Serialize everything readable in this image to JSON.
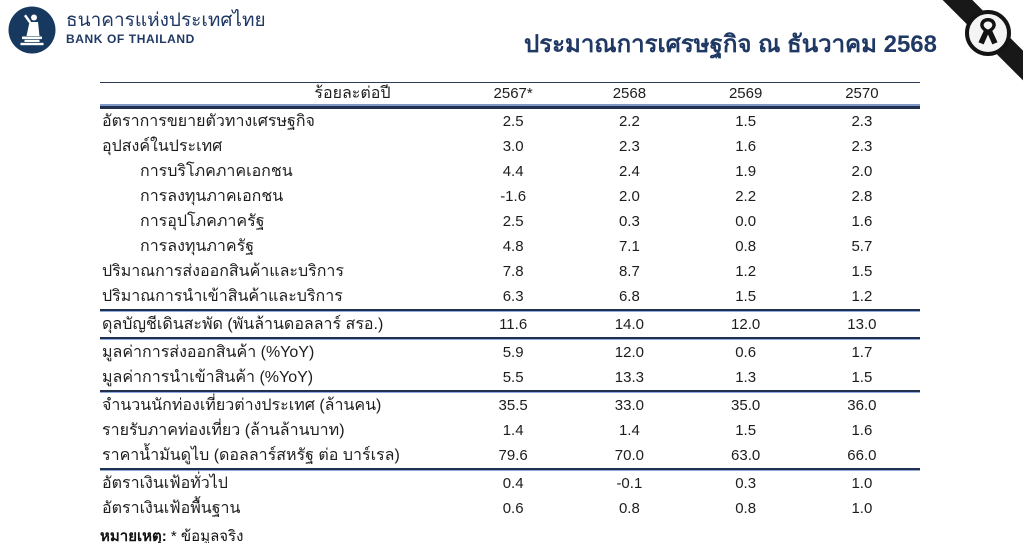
{
  "header": {
    "logo": {
      "thai_name": "ธนาคารแห่งประเทศไทย",
      "eng_name": "BANK OF THAILAND"
    },
    "title": "ประมาณการเศรษฐกิจ ณ ธันวาคม 2568"
  },
  "colors": {
    "accent_navy": "#1F3864",
    "logo_navy": "#17395F",
    "rule_dark": "#22304F",
    "rule_light": "#8098C6",
    "band_black": "#181818"
  },
  "table": {
    "columns": [
      "ร้อยละต่อปี",
      "2567*",
      "2568",
      "2569",
      "2570"
    ],
    "rows": [
      {
        "label": "อัตราการขยายตัวทางเศรษฐกิจ",
        "indent": false,
        "divider_above": false,
        "values": [
          "2.5",
          "2.2",
          "1.5",
          "2.3"
        ]
      },
      {
        "label": "อุปสงค์ในประเทศ",
        "indent": false,
        "divider_above": false,
        "values": [
          "3.0",
          "2.3",
          "1.6",
          "2.3"
        ]
      },
      {
        "label": "การบริโภคภาคเอกชน",
        "indent": true,
        "divider_above": false,
        "values": [
          "4.4",
          "2.4",
          "1.9",
          "2.0"
        ]
      },
      {
        "label": "การลงทุนภาคเอกชน",
        "indent": true,
        "divider_above": false,
        "values": [
          "-1.6",
          "2.0",
          "2.2",
          "2.8"
        ]
      },
      {
        "label": "การอุปโภคภาครัฐ",
        "indent": true,
        "divider_above": false,
        "values": [
          "2.5",
          "0.3",
          "0.0",
          "1.6"
        ]
      },
      {
        "label": "การลงทุนภาครัฐ",
        "indent": true,
        "divider_above": false,
        "values": [
          "4.8",
          "7.1",
          "0.8",
          "5.7"
        ]
      },
      {
        "label": "ปริมาณการส่งออกสินค้าและบริการ",
        "indent": false,
        "divider_above": false,
        "values": [
          "7.8",
          "8.7",
          "1.2",
          "1.5"
        ]
      },
      {
        "label": "ปริมาณการนำเข้าสินค้าและบริการ",
        "indent": false,
        "divider_above": false,
        "values": [
          "6.3",
          "6.8",
          "1.5",
          "1.2"
        ]
      },
      {
        "label": "ดุลบัญชีเดินสะพัด (พันล้านดอลลาร์ สรอ.)",
        "indent": false,
        "divider_above": true,
        "values": [
          "11.6",
          "14.0",
          "12.0",
          "13.0"
        ]
      },
      {
        "label": "มูลค่าการส่งออกสินค้า (%YoY)",
        "indent": false,
        "divider_above": true,
        "values": [
          "5.9",
          "12.0",
          "0.6",
          "1.7"
        ]
      },
      {
        "label": "มูลค่าการนำเข้าสินค้า (%YoY)",
        "indent": false,
        "divider_above": false,
        "values": [
          "5.5",
          "13.3",
          "1.3",
          "1.5"
        ]
      },
      {
        "label": "จำนวนนักท่องเที่ยวต่างประเทศ (ล้านคน)",
        "indent": false,
        "divider_above": true,
        "values": [
          "35.5",
          "33.0",
          "35.0",
          "36.0"
        ]
      },
      {
        "label": "รายรับภาคท่องเที่ยว (ล้านล้านบาท)",
        "indent": false,
        "divider_above": false,
        "values": [
          "1.4",
          "1.4",
          "1.5",
          "1.6"
        ]
      },
      {
        "label": "ราคาน้ำมันดูไบ (ดอลลาร์สหรัฐ ต่อ บาร์เรล)",
        "indent": false,
        "divider_above": false,
        "values": [
          "79.6",
          "70.0",
          "63.0",
          "66.0"
        ]
      },
      {
        "label": "อัตราเงินเฟ้อทั่วไป",
        "indent": false,
        "divider_above": true,
        "values": [
          "0.4",
          "-0.1",
          "0.3",
          "1.0"
        ]
      },
      {
        "label": "อัตราเงินเฟ้อพื้นฐาน",
        "indent": false,
        "divider_above": false,
        "values": [
          "0.6",
          "0.8",
          "0.8",
          "1.0"
        ]
      }
    ],
    "footnote": {
      "bold": "หมายเหตุ:",
      "text": "* ข้อมูลจริง"
    }
  }
}
